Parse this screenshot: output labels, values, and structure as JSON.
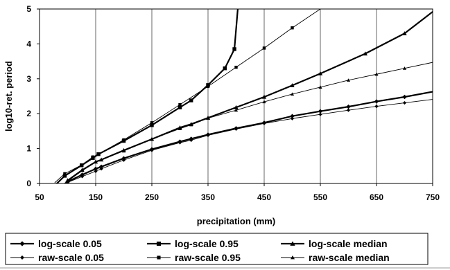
{
  "chart_data": {
    "type": "line",
    "xlabel": "precipitation (mm)",
    "ylabel": "log10-ret. period",
    "xlim": [
      50,
      750
    ],
    "ylim": [
      0,
      5
    ],
    "xticks": [
      50,
      150,
      250,
      350,
      450,
      550,
      650,
      750
    ],
    "yticks": [
      0,
      1,
      2,
      3,
      4,
      5
    ],
    "grid": {
      "vertical": true,
      "horizontal": false
    },
    "legend_position": "bottom",
    "series": [
      {
        "name": "log-scale 0.05",
        "weight": "bold",
        "marker": "diamond",
        "x": [
          88,
          100,
          126,
          150,
          160,
          200,
          250,
          300,
          320,
          350,
          400,
          450,
          500,
          550,
          600,
          650,
          700,
          750
        ],
        "y": [
          -0.08,
          0.05,
          0.25,
          0.42,
          0.48,
          0.72,
          0.98,
          1.2,
          1.28,
          1.4,
          1.58,
          1.74,
          1.93,
          2.07,
          2.2,
          2.35,
          2.48,
          2.63
        ]
      },
      {
        "name": "log-scale 0.95",
        "weight": "bold",
        "marker": "square",
        "x": [
          77,
          95,
          125,
          145,
          155,
          200,
          250,
          300,
          320,
          350,
          380,
          397,
          403
        ],
        "y": [
          -0.06,
          0.22,
          0.52,
          0.73,
          0.84,
          1.22,
          1.67,
          2.18,
          2.38,
          2.82,
          3.3,
          3.85,
          5.0
        ]
      },
      {
        "name": "log-scale median",
        "weight": "bold",
        "marker": "triangle",
        "x": [
          93,
          100,
          126,
          150,
          160,
          200,
          250,
          300,
          320,
          350,
          400,
          450,
          500,
          550,
          630,
          700,
          750
        ],
        "y": [
          -0.07,
          0.08,
          0.38,
          0.62,
          0.68,
          0.95,
          1.27,
          1.6,
          1.7,
          1.88,
          2.18,
          2.48,
          2.81,
          3.15,
          3.72,
          4.3,
          4.92
        ]
      },
      {
        "name": "raw-scale 0.05",
        "weight": "thin",
        "marker": "diamond",
        "x": [
          88,
          100,
          126,
          150,
          160,
          200,
          250,
          300,
          320,
          350,
          400,
          450,
          500,
          550,
          600,
          650,
          700,
          750
        ],
        "y": [
          -0.08,
          0.03,
          0.2,
          0.35,
          0.42,
          0.67,
          0.95,
          1.17,
          1.24,
          1.38,
          1.56,
          1.72,
          1.86,
          1.98,
          2.1,
          2.21,
          2.31,
          2.41
        ]
      },
      {
        "name": "raw-scale 0.95",
        "weight": "thin",
        "marker": "square",
        "x": [
          77,
          95,
          125,
          145,
          155,
          200,
          250,
          300,
          350,
          400,
          450,
          500,
          550
        ],
        "y": [
          0.02,
          0.28,
          0.53,
          0.76,
          0.84,
          1.25,
          1.74,
          2.26,
          2.78,
          3.33,
          3.88,
          4.46,
          5.0
        ]
      },
      {
        "name": "raw-scale median",
        "weight": "thin",
        "marker": "triangle",
        "x": [
          93,
          100,
          126,
          150,
          160,
          200,
          250,
          300,
          320,
          350,
          400,
          450,
          500,
          550,
          600,
          650,
          700,
          750
        ],
        "y": [
          -0.07,
          0.1,
          0.4,
          0.62,
          0.68,
          0.93,
          1.27,
          1.57,
          1.68,
          1.87,
          2.1,
          2.34,
          2.56,
          2.76,
          2.96,
          3.13,
          3.3,
          3.47
        ]
      }
    ]
  }
}
